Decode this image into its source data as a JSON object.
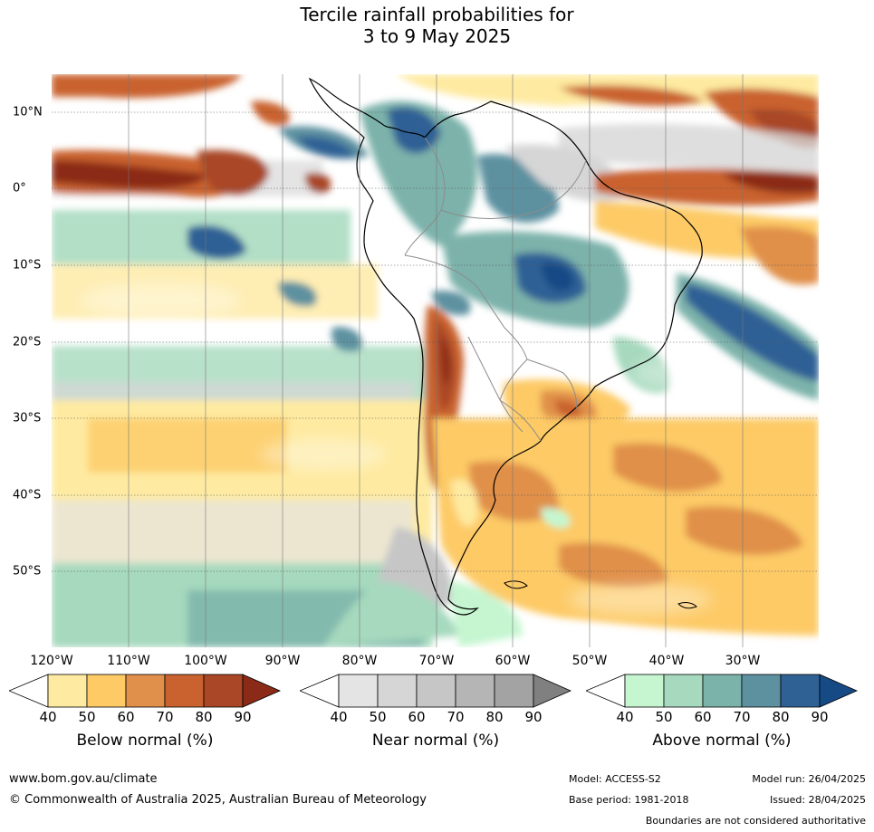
{
  "title_line1": "Tercile rainfall probabilities for",
  "title_line2": "3 to 9 May 2025",
  "lon_labels": [
    "120°W",
    "110°W",
    "100°W",
    "90°W",
    "80°W",
    "70°W",
    "60°W",
    "50°W",
    "40°W",
    "30°W"
  ],
  "lat_labels": [
    "10°N",
    "0°",
    "10°S",
    "20°S",
    "30°S",
    "40°S",
    "50°S"
  ],
  "colorbars": [
    {
      "title": "Below normal (%)",
      "ticks": [
        "40",
        "50",
        "60",
        "70",
        "80",
        "90"
      ],
      "colors": [
        "#ffffff",
        "#feeaa0",
        "#fdca66",
        "#e0904a",
        "#c9622f",
        "#a94726",
        "#8b2a17"
      ]
    },
    {
      "title": "Near normal (%)",
      "ticks": [
        "40",
        "50",
        "60",
        "70",
        "80",
        "90"
      ],
      "colors": [
        "#ffffff",
        "#e4e4e4",
        "#d6d6d6",
        "#c6c6c6",
        "#b5b5b5",
        "#a3a3a3",
        "#808080"
      ]
    },
    {
      "title": "Above normal (%)",
      "ticks": [
        "40",
        "50",
        "60",
        "70",
        "80",
        "90"
      ],
      "colors": [
        "#ffffff",
        "#c5f6d0",
        "#a6d9bd",
        "#7bb2aa",
        "#5d91a0",
        "#2f6195",
        "#154a85"
      ]
    }
  ],
  "footer": {
    "website": "www.bom.gov.au/climate",
    "copyright": "© Commonwealth of Australia 2025, Australian Bureau of Meteorology",
    "model": "Model: ACCESS-S2",
    "model_run": "Model run: 26/04/2025",
    "base_period": "Base period: 1981-2018",
    "issued": "Issued: 28/04/2025",
    "disclaimer": "Boundaries are not considered authoritative"
  }
}
